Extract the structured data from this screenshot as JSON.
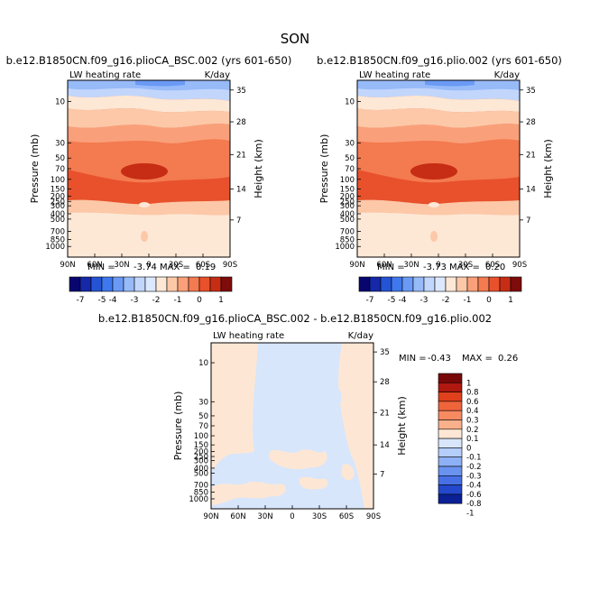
{
  "page_title": "SON",
  "chart_data": [
    {
      "type": "contour",
      "title": "b.e12.B1850CN.f09_g16.plioCA_BSC.002 (yrs 601-650)",
      "variable": "LW heating rate",
      "units": "K/day",
      "ylabel": "Pressure (mb)",
      "y2label": "Height (km)",
      "x_ticks": [
        "90N",
        "60N",
        "30N",
        "0",
        "30S",
        "60S",
        "90S"
      ],
      "pressure_ticks": [
        "10",
        "30",
        "50",
        "70",
        "100",
        "150",
        "200",
        "250",
        "300",
        "400",
        "500",
        "700",
        "850",
        "1000"
      ],
      "height_ticks": [
        "35",
        "28",
        "21",
        "14",
        "7"
      ],
      "stats": {
        "min_label": "MIN =",
        "min": "-3.74",
        "max_label": "MAX =",
        "max": "0.19"
      },
      "contour_levels": [
        -7,
        -6,
        -5,
        -4,
        -3.5,
        -3,
        -2.5,
        -2,
        -1.5,
        -1,
        -0.5,
        0,
        0.5,
        1
      ],
      "colorbar_labels": [
        "-7",
        "-5",
        "-4",
        "-3",
        "-2",
        "-1",
        "0",
        "1"
      ]
    },
    {
      "type": "contour",
      "title": "b.e12.B1850CN.f09_g16.plio.002 (yrs 601-650)",
      "variable": "LW heating rate",
      "units": "K/day",
      "ylabel": "Pressure (mb)",
      "y2label": "Height (km)",
      "x_ticks": [
        "90N",
        "60N",
        "30N",
        "0",
        "30S",
        "60S",
        "90S"
      ],
      "pressure_ticks": [
        "10",
        "30",
        "50",
        "70",
        "100",
        "150",
        "200",
        "250",
        "300",
        "400",
        "500",
        "700",
        "850",
        "1000"
      ],
      "height_ticks": [
        "35",
        "28",
        "21",
        "14",
        "7"
      ],
      "stats": {
        "min_label": "MIN =",
        "min": "-3.73",
        "max_label": "MAX =",
        "max": "0.20"
      },
      "contour_levels": [
        -7,
        -6,
        -5,
        -4,
        -3.5,
        -3,
        -2.5,
        -2,
        -1.5,
        -1,
        -0.5,
        0,
        0.5,
        1
      ],
      "colorbar_labels": [
        "-7",
        "-5",
        "-4",
        "-3",
        "-2",
        "-1",
        "0",
        "1"
      ]
    },
    {
      "type": "contour",
      "title": "b.e12.B1850CN.f09_g16.plioCA_BSC.002 - b.e12.B1850CN.f09_g16.plio.002",
      "variable": "LW heating rate",
      "units": "K/day",
      "ylabel": "Pressure (mb)",
      "y2label": "Height (km)",
      "x_ticks": [
        "90N",
        "60N",
        "30N",
        "0",
        "30S",
        "60S",
        "90S"
      ],
      "pressure_ticks": [
        "10",
        "30",
        "50",
        "70",
        "100",
        "150",
        "200",
        "250",
        "300",
        "400",
        "500",
        "700",
        "850",
        "1000"
      ],
      "height_ticks": [
        "35",
        "28",
        "21",
        "14",
        "7"
      ],
      "stats": {
        "min_label": "MIN =",
        "min": "-0.43",
        "max_label": "MAX =",
        "max": "0.26"
      },
      "contour_levels": [
        -1,
        -0.8,
        -0.6,
        -0.4,
        -0.3,
        -0.2,
        -0.1,
        0,
        0.1,
        0.2,
        0.3,
        0.4,
        0.6,
        0.8,
        1
      ],
      "colorbar_labels": [
        "1",
        "0.8",
        "0.6",
        "0.4",
        "0.3",
        "0.2",
        "0.1",
        "0",
        "-0.1",
        "-0.2",
        "-0.3",
        "-0.4",
        "-0.6",
        "-0.8",
        "-1"
      ]
    }
  ],
  "colors": {
    "abs_scale": [
      "#08066e",
      "#1428a8",
      "#2454d4",
      "#3f78ee",
      "#6a9af5",
      "#97baf9",
      "#c2d6fb",
      "#dce8fd",
      "#fde8d6",
      "#fcc8a8",
      "#f9a07a",
      "#f47a50",
      "#e8512c",
      "#c62d14",
      "#7d0c0a"
    ],
    "diff_scale": [
      "#780808",
      "#b01810",
      "#e0401c",
      "#f0643c",
      "#f88a62",
      "#fbb08c",
      "#fde7d4",
      "#d8e6fb",
      "#b4cdfa",
      "#8db0f6",
      "#6a93f0",
      "#4870e6",
      "#2348cc",
      "#0a2094"
    ]
  }
}
